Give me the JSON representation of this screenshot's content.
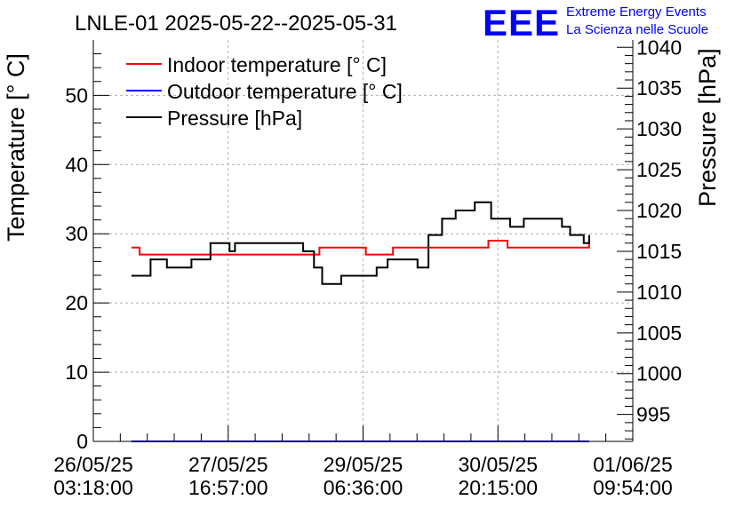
{
  "chart_data": {
    "type": "line",
    "title": "LNLE-01 2025-05-22--2025-05-31",
    "ylabel_left": "Temperature [° C]",
    "ylabel_right": "Pressure [hPa]",
    "y_left_range": [
      0,
      58
    ],
    "y_right_range": [
      991.7,
      1040.9
    ],
    "x_range_hours": [
      0,
      198
    ],
    "grid": true,
    "legend_position": "top-left",
    "y_left_ticks": [
      "0",
      "10",
      "20",
      "30",
      "40",
      "50"
    ],
    "y_left_tick_values": [
      0,
      10,
      20,
      30,
      40,
      50
    ],
    "y_right_ticks": [
      "995",
      "1000",
      "1005",
      "1010",
      "1015",
      "1020",
      "1025",
      "1030",
      "1035",
      "1040"
    ],
    "y_right_tick_values": [
      995,
      1000,
      1005,
      1010,
      1015,
      1020,
      1025,
      1030,
      1035,
      1040
    ],
    "x_ticks": [
      {
        "date": "26/05/25",
        "time": "03:18:00",
        "hour": 0
      },
      {
        "date": "27/05/25",
        "time": "16:57:00",
        "hour": 49.5
      },
      {
        "date": "29/05/25",
        "time": "06:36:00",
        "hour": 99
      },
      {
        "date": "30/05/25",
        "time": "20:15:00",
        "hour": 148.5
      },
      {
        "date": "01/06/25",
        "time": "09:54:00",
        "hour": 198
      }
    ],
    "series": [
      {
        "name": "Indoor temperature [° C]",
        "axis": "left",
        "color": "#ff0000",
        "x": [
          14,
          16,
          17,
          30,
          46,
          62,
          78,
          83,
          96,
          100,
          105,
          110,
          130,
          140,
          145,
          151,
          152,
          158,
          168,
          182
        ],
        "y": [
          28,
          28,
          27,
          27,
          27,
          27,
          27,
          28,
          28,
          27,
          27,
          28,
          28,
          28,
          29,
          29,
          28,
          28,
          28,
          29
        ]
      },
      {
        "name": "Outdoor temperature [° C]",
        "axis": "left",
        "color": "#0000ff",
        "x": [
          14,
          182
        ],
        "y": [
          0,
          0
        ]
      },
      {
        "name": "Pressure [hPa]",
        "axis": "right",
        "color": "#000000",
        "x": [
          14,
          19,
          21,
          25,
          27,
          33,
          36,
          41,
          43,
          47,
          50,
          52,
          59,
          65,
          73,
          77,
          81,
          84,
          88,
          91,
          93,
          99,
          104,
          108,
          115,
          119,
          123,
          128,
          133,
          140,
          142,
          146,
          148,
          153,
          158,
          165,
          168,
          172,
          175,
          180,
          182
        ],
        "y": [
          1012,
          1012,
          1014,
          1014,
          1013,
          1013,
          1014,
          1014,
          1016,
          1016,
          1015,
          1016,
          1016,
          1016,
          1016,
          1015,
          1013,
          1011,
          1011,
          1012,
          1012,
          1012,
          1013,
          1014,
          1014,
          1013,
          1017,
          1019,
          1020,
          1021,
          1021,
          1019,
          1019,
          1018,
          1019,
          1019,
          1019,
          1018,
          1017,
          1016,
          1017
        ]
      }
    ]
  },
  "logo": {
    "mark": "EEE",
    "line1": "Extreme Energy Events",
    "line2": "La Scienza nelle Scuole"
  },
  "colors": {
    "logo_blue": "#0000ff",
    "grid": "#b0b0b0"
  }
}
